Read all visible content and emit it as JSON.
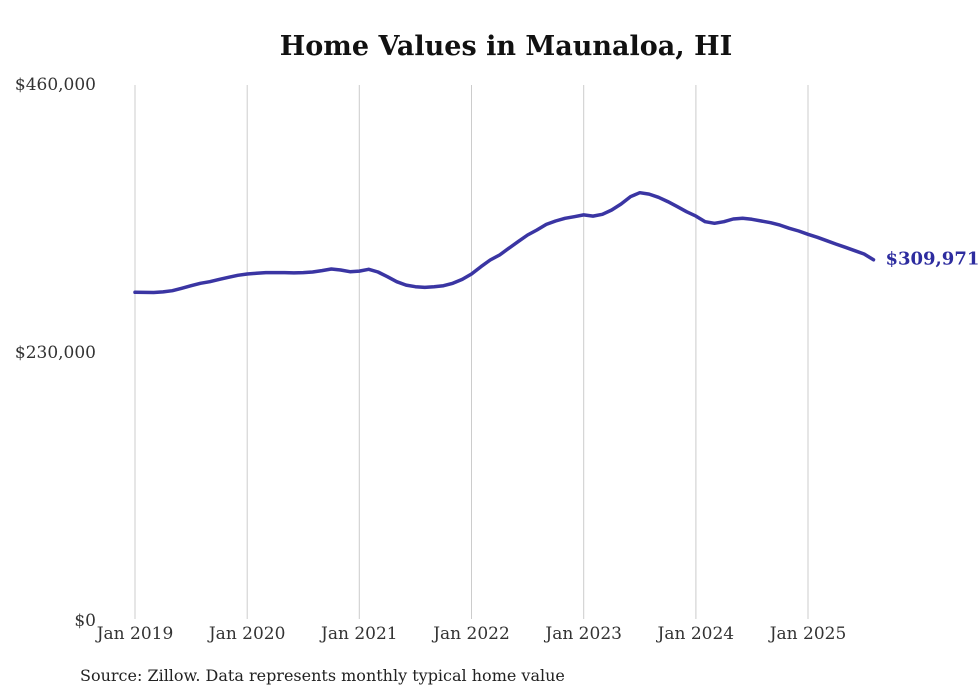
{
  "chart_data": {
    "type": "line",
    "title": "Home Values in Maunaloa, HI",
    "source_note": "Source: Zillow. Data represents monthly typical home value",
    "end_label": "$309,971",
    "end_value": 309971,
    "x_tick_labels": [
      "Jan 2019",
      "Jan 2020",
      "Jan 2021",
      "Jan 2022",
      "Jan 2023",
      "Jan 2024",
      "Jan 2025"
    ],
    "y_ticks": [
      {
        "label": "$460,000",
        "value": 460000
      },
      {
        "label": "$230,000",
        "value": 230000
      },
      {
        "label": "$0",
        "value": 0
      }
    ],
    "ylim": [
      0,
      460000
    ],
    "grid": "vertical-only",
    "legend": "none",
    "colors": {
      "line": "#3a35a3",
      "end_label": "#2d2c9f",
      "grid": "#cccccc",
      "tick_text": "#333333",
      "title_text": "#111111"
    },
    "series": [
      {
        "name": "Monthly typical home value",
        "unit": "USD",
        "frequency": "monthly",
        "start": "Jan 2019",
        "end": "Aug 2025",
        "values": [
          282100,
          282000,
          281900,
          282400,
          283500,
          285500,
          287800,
          289800,
          291200,
          293200,
          295000,
          296700,
          297800,
          298400,
          299000,
          299000,
          299000,
          298700,
          299000,
          299500,
          300700,
          302100,
          301200,
          299800,
          300300,
          301800,
          299500,
          295500,
          291200,
          288300,
          286900,
          286300,
          286900,
          287800,
          289800,
          293200,
          297800,
          304100,
          309800,
          314100,
          319900,
          325600,
          331300,
          335600,
          340400,
          343300,
          345600,
          347000,
          348500,
          347500,
          349000,
          352700,
          357900,
          364100,
          367600,
          366400,
          363600,
          359900,
          355600,
          351300,
          347500,
          342700,
          341300,
          342700,
          345000,
          345600,
          344700,
          343300,
          341800,
          339800,
          337000,
          334700,
          331900,
          329300,
          326400,
          323500,
          320700,
          317800,
          315000,
          309971
        ]
      }
    ]
  }
}
